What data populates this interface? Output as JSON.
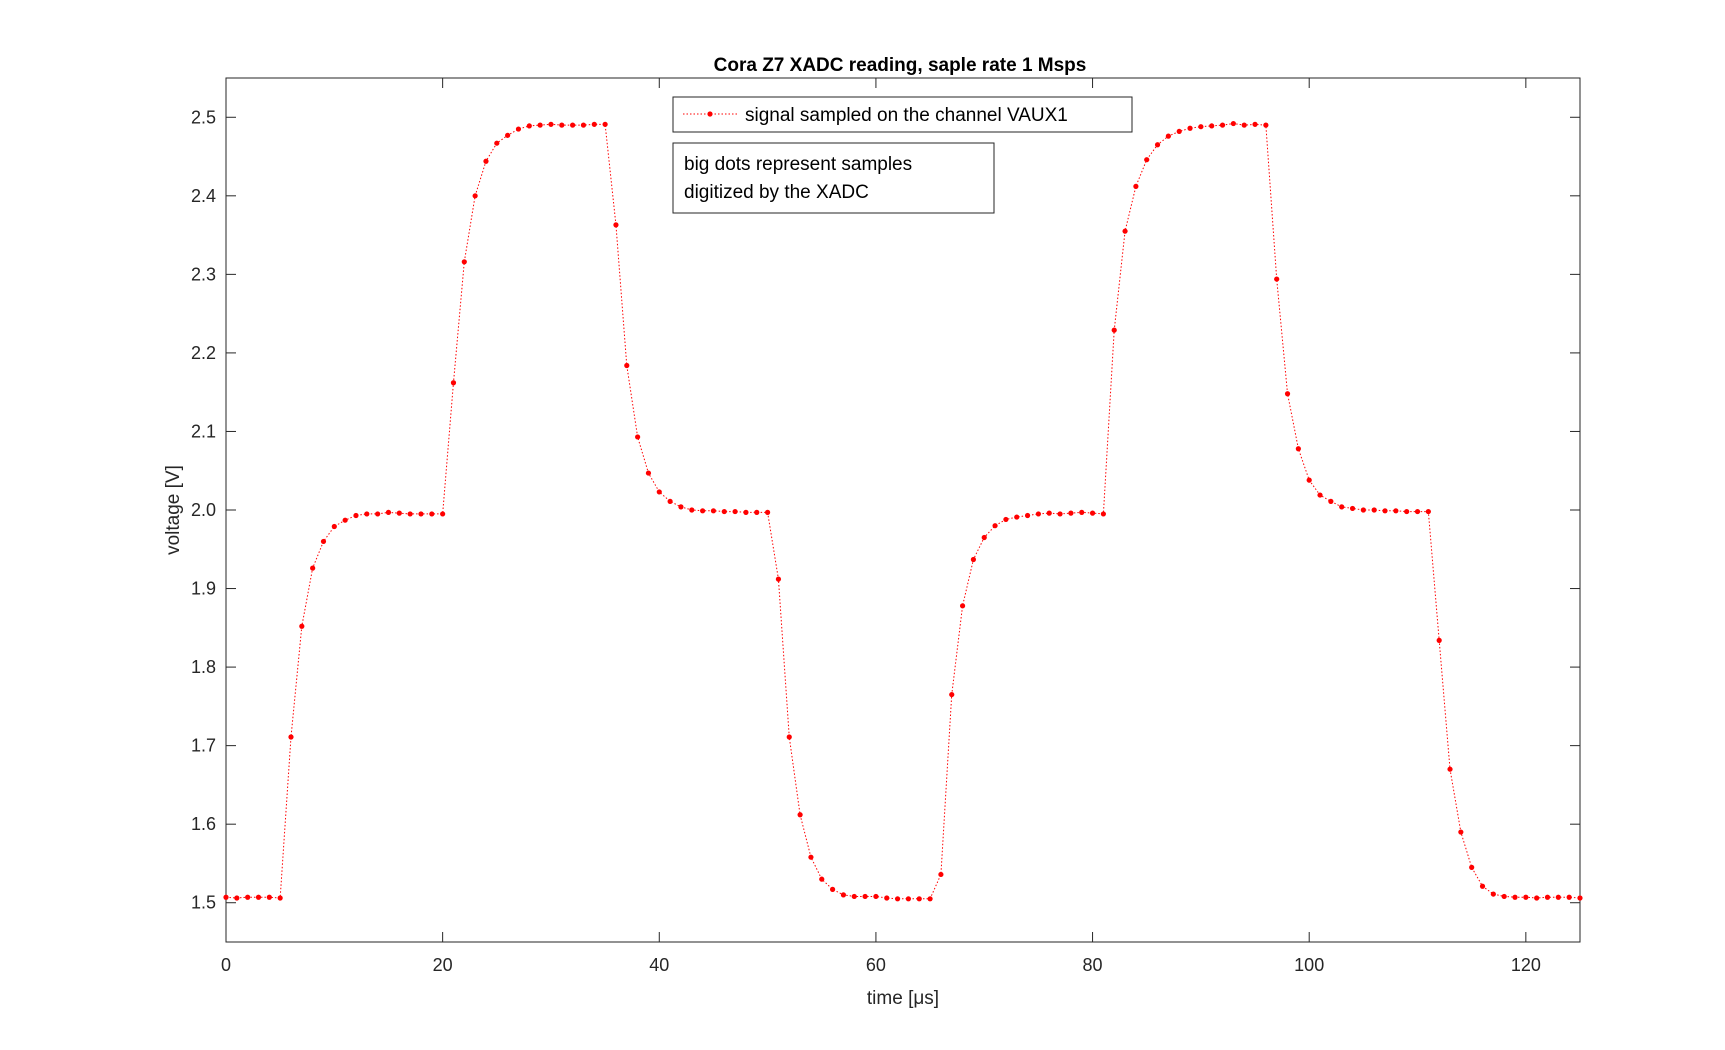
{
  "chart_data": {
    "type": "line",
    "title": "Cora Z7 XADC reading, saple rate 1 Msps",
    "xlabel": "time [μs]",
    "ylabel": "voltage [V]",
    "xlim": [
      0,
      125
    ],
    "ylim": [
      1.45,
      2.55
    ],
    "xticks": [
      0,
      20,
      40,
      60,
      80,
      100,
      120
    ],
    "xtick_labels": [
      "0",
      "20",
      "40",
      "60",
      "80",
      "100",
      "120"
    ],
    "yticks": [
      1.5,
      1.6,
      1.7,
      1.8,
      1.9,
      2.0,
      2.1,
      2.2,
      2.3,
      2.4,
      2.5
    ],
    "ytick_labels": [
      "1.5",
      "1.6",
      "1.7",
      "1.8",
      "1.9",
      "2.0",
      "2.1",
      "2.2",
      "2.3",
      "2.4",
      "2.5"
    ],
    "grid": false,
    "legend_placement": "top-center",
    "series": [
      {
        "name": "signal sampled on the channel VAUX1",
        "color": "#ff0000",
        "line_style": "dotted",
        "marker": "dot",
        "x": [
          0,
          1,
          2,
          3,
          4,
          5,
          6,
          7,
          8,
          9,
          10,
          11,
          12,
          13,
          14,
          15,
          16,
          17,
          18,
          19,
          20,
          21,
          22,
          23,
          24,
          25,
          26,
          27,
          28,
          29,
          30,
          31,
          32,
          33,
          34,
          35,
          36,
          37,
          38,
          39,
          40,
          41,
          42,
          43,
          44,
          45,
          46,
          47,
          48,
          49,
          50,
          51,
          52,
          53,
          54,
          55,
          56,
          57,
          58,
          59,
          60,
          61,
          62,
          63,
          64,
          65,
          66,
          67,
          68,
          69,
          70,
          71,
          72,
          73,
          74,
          75,
          76,
          77,
          78,
          79,
          80,
          81,
          82,
          83,
          84,
          85,
          86,
          87,
          88,
          89,
          90,
          91,
          92,
          93,
          94,
          95,
          96,
          97,
          98,
          99,
          100,
          101,
          102,
          103,
          104,
          105,
          106,
          107,
          108,
          109,
          110,
          111,
          112,
          113,
          114,
          115,
          116,
          117,
          118,
          119,
          120,
          121,
          122,
          123,
          124,
          125
        ],
        "y": [
          1.507,
          1.506,
          1.507,
          1.507,
          1.507,
          1.506,
          1.711,
          1.852,
          1.926,
          1.96,
          1.979,
          1.987,
          1.993,
          1.995,
          1.995,
          1.997,
          1.996,
          1.995,
          1.995,
          1.995,
          1.995,
          2.162,
          2.316,
          2.4,
          2.444,
          2.467,
          2.477,
          2.485,
          2.489,
          2.49,
          2.491,
          2.49,
          2.49,
          2.49,
          2.491,
          2.491,
          2.363,
          2.184,
          2.093,
          2.047,
          2.023,
          2.011,
          2.004,
          2.0,
          1.999,
          1.999,
          1.998,
          1.998,
          1.997,
          1.997,
          1.997,
          1.912,
          1.711,
          1.612,
          1.558,
          1.53,
          1.517,
          1.51,
          1.508,
          1.508,
          1.508,
          1.506,
          1.505,
          1.505,
          1.505,
          1.505,
          1.536,
          1.765,
          1.878,
          1.937,
          1.965,
          1.98,
          1.988,
          1.991,
          1.993,
          1.995,
          1.996,
          1.995,
          1.996,
          1.997,
          1.996,
          1.995,
          2.229,
          2.355,
          2.412,
          2.446,
          2.465,
          2.476,
          2.482,
          2.486,
          2.488,
          2.489,
          2.49,
          2.492,
          2.49,
          2.491,
          2.49,
          2.294,
          2.148,
          2.078,
          2.038,
          2.019,
          2.011,
          2.004,
          2.002,
          2.0,
          2.0,
          1.999,
          1.999,
          1.998,
          1.998,
          1.998,
          1.834,
          1.67,
          1.59,
          1.545,
          1.521,
          1.511,
          1.508,
          1.507,
          1.507,
          1.506,
          1.507,
          1.507,
          1.507,
          1.506
        ]
      }
    ],
    "annotations": [
      {
        "lines": [
          "big dots represent samples",
          "digitized by the XADC"
        ]
      }
    ]
  }
}
